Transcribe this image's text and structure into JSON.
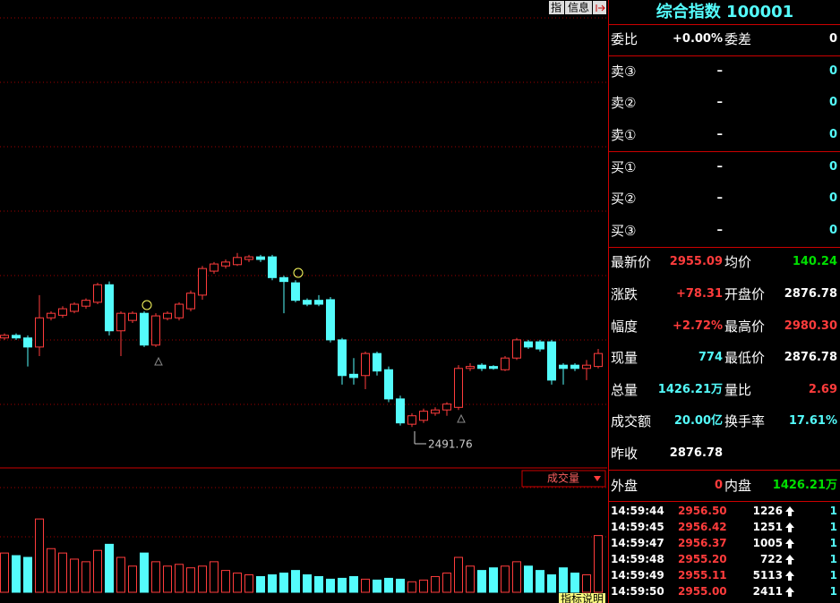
{
  "chart_data": {
    "type": "candlestick",
    "ylim": [
      2430,
      3150
    ],
    "open": [
      2629,
      2633,
      2629,
      2615,
      2660,
      2664,
      2670,
      2678,
      2684,
      2711,
      2640,
      2656,
      2667,
      2618,
      2659,
      2660,
      2674,
      2695,
      2732,
      2740,
      2742,
      2750,
      2754,
      2754,
      2722,
      2714,
      2687,
      2687,
      2688,
      2626,
      2573,
      2571,
      2605,
      2580,
      2535,
      2496,
      2502,
      2513,
      2518,
      2522,
      2582,
      2587,
      2585,
      2580,
      2598,
      2623,
      2623,
      2623,
      2587,
      2587,
      2582,
      2585
    ],
    "high": [
      2636,
      2636,
      2633,
      2695,
      2670,
      2678,
      2684,
      2690,
      2714,
      2716,
      2670,
      2670,
      2670,
      2667,
      2670,
      2684,
      2702,
      2740,
      2746,
      2750,
      2760,
      2757,
      2757,
      2757,
      2725,
      2718,
      2690,
      2695,
      2692,
      2629,
      2598,
      2608,
      2608,
      2585,
      2540,
      2513,
      2520,
      2522,
      2530,
      2587,
      2590,
      2590,
      2587,
      2601,
      2629,
      2626,
      2626,
      2626,
      2590,
      2590,
      2595,
      2612
    ],
    "low": [
      2626,
      2626,
      2585,
      2601,
      2656,
      2660,
      2667,
      2674,
      2681,
      2633,
      2601,
      2652,
      2615,
      2615,
      2656,
      2656,
      2670,
      2688,
      2728,
      2736,
      2740,
      2746,
      2746,
      2718,
      2667,
      2684,
      2678,
      2678,
      2622,
      2557,
      2557,
      2550,
      2571,
      2530,
      2494,
      2491.76,
      2498,
      2509,
      2509,
      2518,
      2578,
      2578,
      2580,
      2578,
      2595,
      2612,
      2608,
      2557,
      2557,
      2578,
      2564,
      2582
    ],
    "close": [
      2633,
      2629,
      2615,
      2660,
      2667,
      2674,
      2681,
      2687,
      2711,
      2640,
      2667,
      2667,
      2618,
      2663,
      2667,
      2681,
      2698,
      2736,
      2743,
      2746,
      2753,
      2754,
      2750,
      2722,
      2716,
      2687,
      2681,
      2681,
      2626,
      2571,
      2568,
      2605,
      2578,
      2535,
      2498,
      2509,
      2516,
      2518,
      2527,
      2582,
      2585,
      2582,
      2582,
      2598,
      2626,
      2615,
      2612,
      2564,
      2582,
      2582,
      2587,
      2605
    ],
    "low_label": "2491.76",
    "up_color": "#ff3c3c",
    "down_color": "#54fcfc",
    "volume": {
      "label": "成交量",
      "ylim": [
        0,
        120
      ],
      "values": [
        45,
        42,
        40,
        84,
        50,
        45,
        38,
        35,
        48,
        55,
        40,
        30,
        45,
        35,
        30,
        32,
        28,
        30,
        35,
        25,
        22,
        20,
        18,
        20,
        22,
        25,
        20,
        18,
        15,
        16,
        18,
        15,
        14,
        16,
        15,
        12,
        14,
        18,
        22,
        40,
        30,
        25,
        28,
        30,
        35,
        30,
        25,
        20,
        28,
        22,
        20,
        65
      ]
    },
    "buttons": [
      "指",
      "信息"
    ],
    "indicator_note": "指标说明"
  },
  "quote": {
    "title": "综合指数 100001",
    "commission": {
      "l1": "委比",
      "v1": "+0.00%",
      "c1": "white",
      "l2": "委差",
      "v2": "0",
      "c2": "white"
    },
    "sells": [
      {
        "l1": "卖③",
        "v1": "–",
        "c1": "white",
        "v2": "0",
        "c2": "cyan"
      },
      {
        "l1": "卖②",
        "v1": "–",
        "c1": "white",
        "v2": "0",
        "c2": "cyan"
      },
      {
        "l1": "卖①",
        "v1": "–",
        "c1": "white",
        "v2": "0",
        "c2": "cyan"
      }
    ],
    "buys": [
      {
        "l1": "买①",
        "v1": "–",
        "c1": "white",
        "v2": "0",
        "c2": "cyan"
      },
      {
        "l1": "买②",
        "v1": "–",
        "c1": "white",
        "v2": "0",
        "c2": "cyan"
      },
      {
        "l1": "买③",
        "v1": "–",
        "c1": "white",
        "v2": "0",
        "c2": "cyan"
      }
    ],
    "stats": [
      {
        "l1": "最新价",
        "v1": "2955.09",
        "c1": "red",
        "l2": "均价",
        "v2": "140.24",
        "c2": "green"
      },
      {
        "l1": "涨跌",
        "v1": "+78.31",
        "c1": "red",
        "l2": "开盘价",
        "v2": "2876.78",
        "c2": "white"
      },
      {
        "l1": "幅度",
        "v1": "+2.72%",
        "c1": "red",
        "l2": "最高价",
        "v2": "2980.30",
        "c2": "red"
      },
      {
        "l1": "现量",
        "v1": "774",
        "c1": "cyan",
        "l2": "最低价",
        "v2": "2876.78",
        "c2": "white"
      },
      {
        "l1": "总量",
        "v1": "1426.21万",
        "c1": "cyan",
        "l2": "量比",
        "v2": "2.69",
        "c2": "red"
      },
      {
        "l1": "成交额",
        "v1": "20.00亿",
        "c1": "cyan",
        "l2": "换手率",
        "v2": "17.61%",
        "c2": "cyan"
      },
      {
        "l1": "昨收",
        "v1": "2876.78",
        "c1": "white"
      }
    ],
    "flow": {
      "l1": "外盘",
      "v1": "0",
      "c1": "red",
      "l2": "内盘",
      "v2": "1426.21万",
      "c2": "green"
    },
    "trades": [
      [
        "14:59:44",
        "2956.50",
        "1226",
        "1"
      ],
      [
        "14:59:45",
        "2956.42",
        "1251",
        "1"
      ],
      [
        "14:59:47",
        "2956.37",
        "1005",
        "1"
      ],
      [
        "14:59:48",
        "2955.20",
        "722",
        "1"
      ],
      [
        "14:59:49",
        "2955.11",
        "5113",
        "1"
      ],
      [
        "14:59:50",
        "2955.00",
        "2411",
        "1"
      ]
    ]
  }
}
